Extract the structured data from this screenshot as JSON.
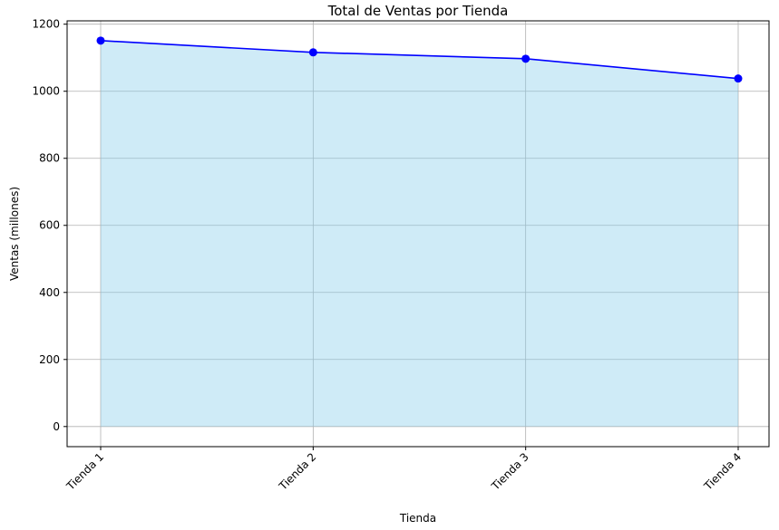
{
  "chart_data": {
    "type": "area",
    "title": "Total de Ventas por Tienda",
    "xlabel": "Tienda",
    "ylabel": "Ventas (millones)",
    "categories": [
      "Tienda 1",
      "Tienda 2",
      "Tienda 3",
      "Tienda 4"
    ],
    "series": [
      {
        "values": [
          1151,
          1116,
          1097,
          1038
        ]
      }
    ],
    "ylim": [
      -60,
      1210
    ],
    "yticks": [
      0,
      200,
      400,
      600,
      800,
      1000,
      1200
    ],
    "xtick_rotation_deg": 45,
    "grid": true,
    "legend": "none",
    "colors": {
      "line": "#0000ff",
      "marker": "#0000ff",
      "fill": "#87ceeb",
      "fill_opacity": 0.4,
      "grid": "#b0b0b0"
    }
  }
}
